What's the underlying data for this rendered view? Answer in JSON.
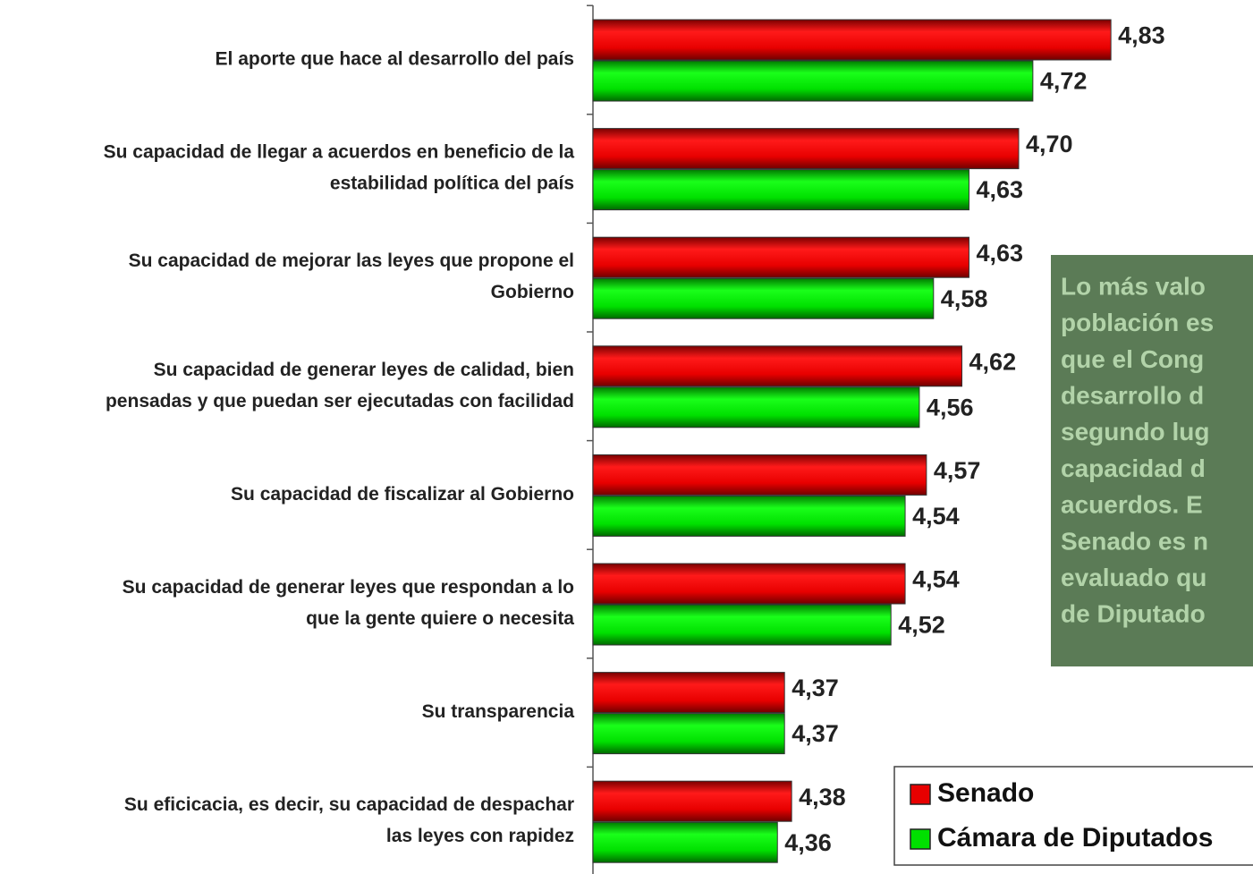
{
  "chart_data": {
    "type": "hbar",
    "categories": [
      [
        "El aporte que hace al desarrollo del país"
      ],
      [
        "Su capacidad de llegar a acuerdos en beneficio de  la",
        "estabilidad política del país"
      ],
      [
        "Su capacidad de mejorar las leyes que propone el",
        "Gobierno"
      ],
      [
        "Su capacidad de generar leyes de calidad, bien",
        "pensadas y que puedan ser ejecutadas con facilidad"
      ],
      [
        "Su capacidad de fiscalizar al Gobierno"
      ],
      [
        "Su capacidad de generar leyes que respondan a lo",
        "que la gente quiere o necesita"
      ],
      [
        "Su transparencia"
      ],
      [
        "Su eficicacia, es decir, su capacidad de despachar",
        "las leyes con rapidez"
      ]
    ],
    "series": [
      {
        "name": "Senado",
        "color": "#e80000",
        "values": [
          4.83,
          4.7,
          4.63,
          4.62,
          4.57,
          4.54,
          4.37,
          4.38
        ],
        "value_labels": [
          "4,83",
          "4,70",
          "4,63",
          "4,62",
          "4,57",
          "4,54",
          "4,37",
          "4,38"
        ]
      },
      {
        "name": "Cámara de Diputados",
        "color": "#00e000",
        "values": [
          4.72,
          4.63,
          4.58,
          4.56,
          4.54,
          4.52,
          4.37,
          4.36
        ],
        "value_labels": [
          "4,72",
          "4,63",
          "4,58",
          "4,56",
          "4,54",
          "4,52",
          "4,37",
          "4,36"
        ]
      }
    ],
    "xlim": [
      4.1,
      5.0
    ],
    "annotation": [
      "Lo más valo",
      "población es",
      "que el Cong",
      "desarrollo d",
      "segundo lug",
      "capacidad d",
      "acuerdos. E",
      "Senado es n",
      "evaluado qu",
      "de Diputado"
    ]
  }
}
